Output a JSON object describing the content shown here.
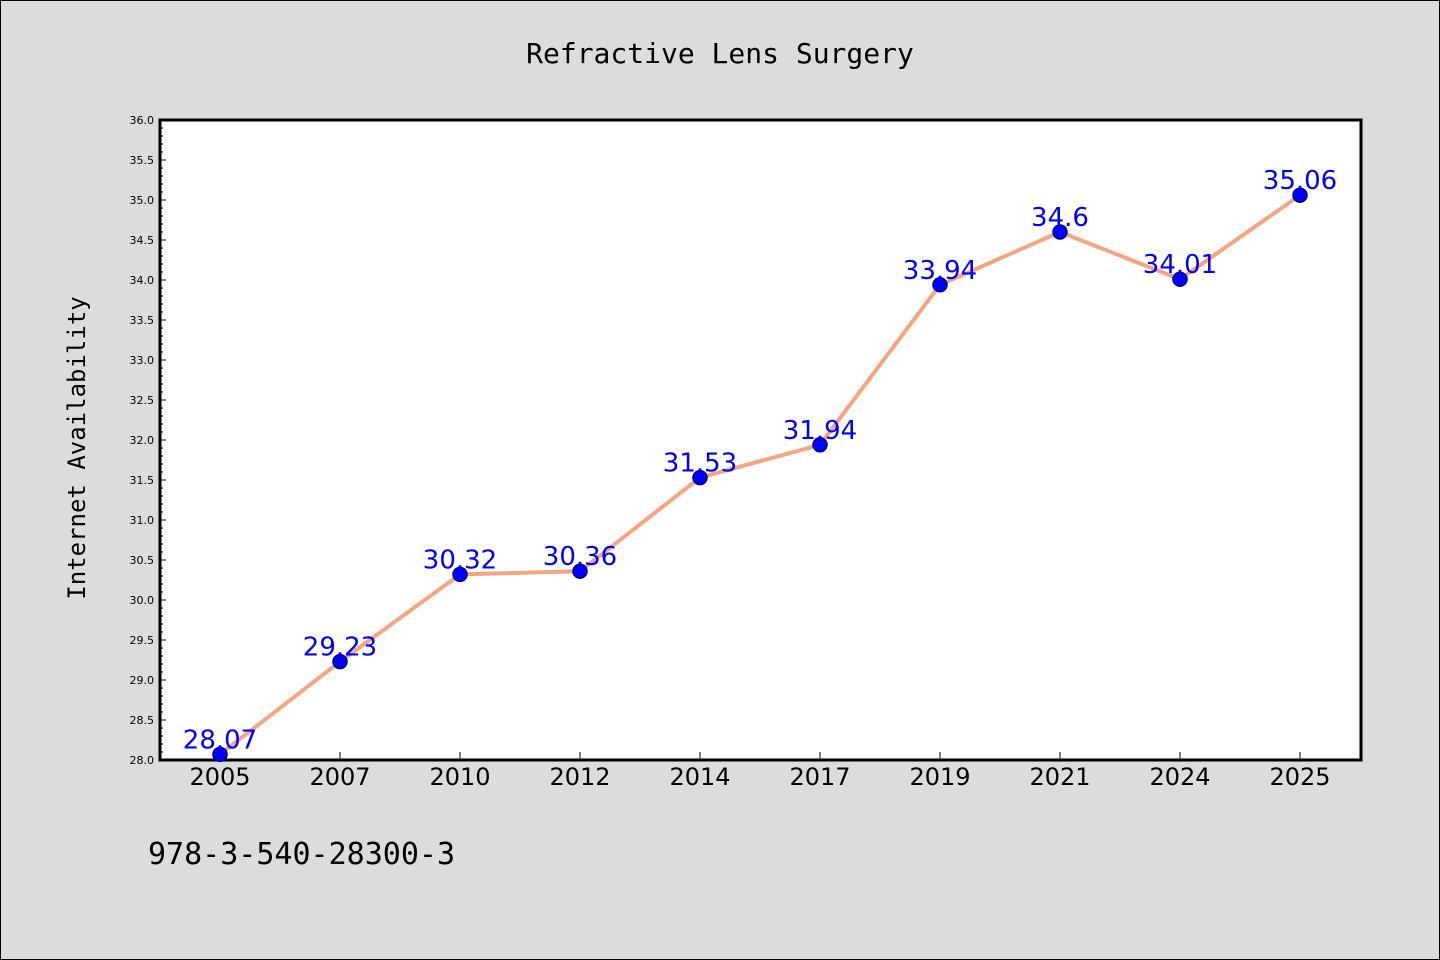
{
  "colors": {
    "line": "#f4a582",
    "marker": "#0000ff",
    "marker_edge": "#00008b",
    "label": "#0000ff",
    "plot_bg": "#ffffff",
    "page_bg": "#dcdcdc"
  },
  "chart_data": {
    "type": "line",
    "title": "Refractive Lens Surgery",
    "ylabel": "Internet Availability",
    "xlabel": "",
    "categories": [
      "2005",
      "2007",
      "2010",
      "2012",
      "2014",
      "2017",
      "2019",
      "2021",
      "2024",
      "2025"
    ],
    "series": [
      {
        "values": [
          28.07,
          29.23,
          30.32,
          30.36,
          31.53,
          31.94,
          33.94,
          34.6,
          34.01,
          35.06
        ]
      }
    ],
    "data_labels": [
      "28.07",
      "29.23",
      "30.32",
      "30.36",
      "31.53",
      "31.94",
      "33.94",
      "34.6",
      "34.01",
      "35.06"
    ],
    "ylim": [
      28.0,
      36.0
    ],
    "yticks": [
      "28.0",
      "28.5",
      "29.0",
      "29.5",
      "30.0",
      "30.5",
      "31.0",
      "31.5",
      "32.0",
      "32.5",
      "33.0",
      "33.5",
      "34.0",
      "34.5",
      "35.0",
      "35.5",
      "36.0"
    ],
    "grid": false,
    "legend": "none"
  },
  "footer": {
    "isbn": "978-3-540-28300-3"
  }
}
